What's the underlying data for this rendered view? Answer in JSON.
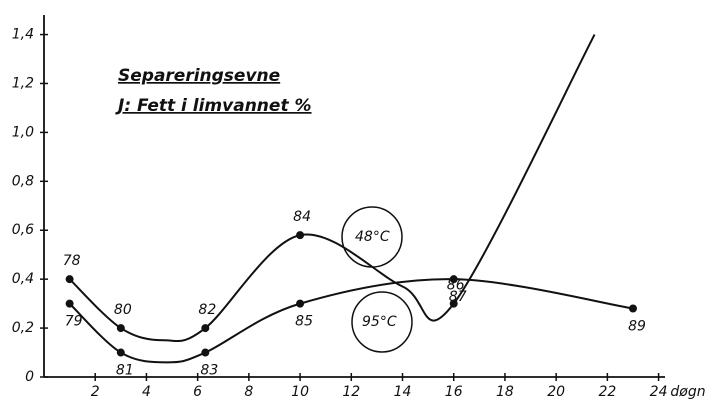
{
  "chart_data": {
    "type": "line",
    "title": "Separeringsevne",
    "subtitle": "J: Fett i limvannet %",
    "x_label": "døgn",
    "xlim": [
      0,
      25.5
    ],
    "xticks": [
      2,
      4,
      6,
      8,
      10,
      12,
      14,
      16,
      18,
      20,
      22,
      24
    ],
    "ylim": [
      0,
      1.48
    ],
    "yticks": [
      0,
      {
        "value": 0.2,
        "label": "0,2"
      },
      {
        "value": 0.4,
        "label": "0,4"
      },
      {
        "value": 0.6,
        "label": "0,6"
      },
      {
        "value": 0.8,
        "label": "0,8"
      },
      {
        "value": 1.0,
        "label": "1,0"
      },
      {
        "value": 1.2,
        "label": "1,2"
      },
      {
        "value": 1.4,
        "label": "1,4"
      }
    ],
    "series": [
      {
        "name": "48°C",
        "color": "#111111",
        "x": [
          1,
          3,
          4.7,
          6.3,
          10,
          14,
          16,
          21.5
        ],
        "values": [
          0.4,
          0.2,
          0.15,
          0.2,
          0.58,
          0.37,
          0.3,
          1.4
        ],
        "point_labels": [
          "78",
          "80",
          null,
          "82",
          "84",
          null,
          "86",
          null
        ]
      },
      {
        "name": "95°C",
        "color": "#111111",
        "x": [
          1,
          3,
          4.8,
          6.3,
          10,
          16,
          23
        ],
        "values": [
          0.3,
          0.1,
          0.06,
          0.1,
          0.3,
          0.4,
          0.28
        ],
        "point_labels": [
          "79",
          "81",
          null,
          "83",
          "85",
          "87",
          "89"
        ]
      }
    ]
  }
}
